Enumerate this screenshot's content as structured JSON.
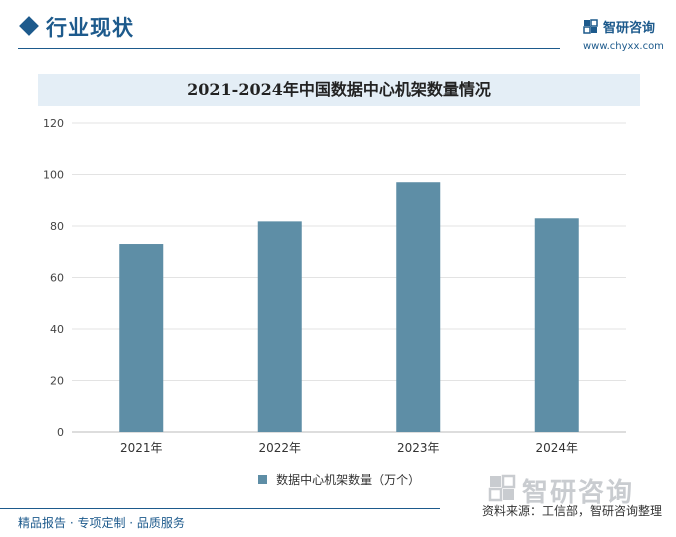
{
  "header": {
    "section_title": "行业现状",
    "brand_name": "智研咨询",
    "brand_url": "www.chyxx.com"
  },
  "chart_data": {
    "type": "bar",
    "title": "2021-2024年中国数据中心机架数量情况",
    "categories": [
      "2021年",
      "2022年",
      "2023年",
      "2024年"
    ],
    "series": [
      {
        "name": "数据中心机架数量（万个）",
        "values": [
          73,
          81.8,
          97,
          83
        ],
        "color": "#5e8ea6"
      }
    ],
    "ylim": [
      0,
      120
    ],
    "yticks": [
      0,
      20,
      40,
      60,
      80,
      100,
      120
    ],
    "xlabel": "",
    "ylabel": "",
    "grid": true,
    "legend_position": "bottom"
  },
  "footer": {
    "tagline": "精品报告 · 专项定制 · 品质服务",
    "logo_text": "智研咨询",
    "source": "资料来源：工信部，智研咨询整理"
  }
}
